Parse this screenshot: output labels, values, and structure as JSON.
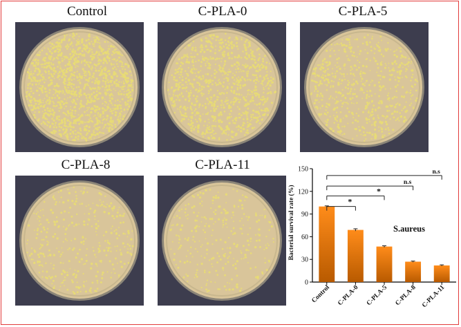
{
  "panels": [
    {
      "title": "Control",
      "colonies": 1400
    },
    {
      "title": "C-PLA-0",
      "colonies": 980
    },
    {
      "title": "C-PLA-5",
      "colonies": 650
    },
    {
      "title": "C-PLA-8",
      "colonies": 380
    },
    {
      "title": "C-PLA-11",
      "colonies": 300
    }
  ],
  "colors": {
    "frame": "#e23a3a",
    "plate_background": "#3d3d4e",
    "agar": "#d9c59a",
    "colony": "#e8dc74",
    "bar_top": "#ff8c1a",
    "bar_bottom": "#b85a00"
  },
  "chart_data": {
    "type": "bar",
    "categories": [
      "Control",
      "C-PLA-0",
      "C-PLA-5",
      "C-PLA-8",
      "C-PLA-11"
    ],
    "values": [
      100,
      69,
      47,
      27,
      22
    ],
    "errors": [
      0.8,
      1.5,
      1.0,
      0.8,
      0.8
    ],
    "ylabel": "Bacterial survival rate (%)",
    "ylim": [
      0,
      150
    ],
    "yticks": [
      0,
      30,
      60,
      90,
      120,
      150
    ],
    "annotation": "S.aureus",
    "significance": [
      {
        "from": "Control",
        "to": "C-PLA-0",
        "label": "*"
      },
      {
        "from": "Control",
        "to": "C-PLA-5",
        "label": "*"
      },
      {
        "from": "Control",
        "to": "C-PLA-8",
        "label": "n.s"
      },
      {
        "from": "Control",
        "to": "C-PLA-11",
        "label": "n.s"
      }
    ],
    "grid": false
  }
}
